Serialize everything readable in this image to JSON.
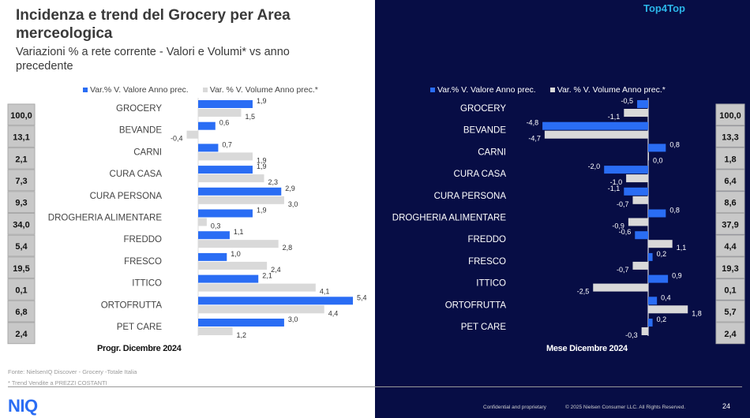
{
  "header": {
    "title": "Incidenza e trend del Grocery per Area merceologica",
    "subtitle": "Variazioni % a rete corrente - Valori e Volumi* vs anno precedente",
    "brand": "Top4Top"
  },
  "colors": {
    "valore": "#2a6df4",
    "volume": "#d9d9d9",
    "right_background": "#070d45",
    "share_box": "#c8c8c8"
  },
  "chart_data": [
    {
      "type": "bar",
      "orientation": "horizontal",
      "period": "Progr. Dicembre 2024",
      "categories": [
        "GROCERY",
        "BEVANDE",
        "CARNI",
        "CURA CASA",
        "CURA PERSONA",
        "DROGHERIA ALIMENTARE",
        "FREDDO",
        "FRESCO",
        "ITTICO",
        "ORTOFRUTTA",
        "PET CARE"
      ],
      "share": [
        "100,0",
        "13,1",
        "2,1",
        "7,3",
        "9,3",
        "34,0",
        "5,4",
        "19,5",
        "0,1",
        "6,8",
        "2,4"
      ],
      "series": [
        {
          "name": "Var.% V. Valore Anno prec.",
          "values": [
            1.9,
            0.6,
            0.7,
            1.9,
            2.9,
            1.9,
            1.1,
            1.0,
            2.1,
            5.4,
            3.0
          ]
        },
        {
          "name": "Var. % V. Volume Anno prec.*",
          "values": [
            1.5,
            -0.4,
            1.9,
            2.3,
            3.0,
            0.3,
            2.8,
            2.4,
            4.1,
            4.4,
            1.2
          ]
        }
      ]
    },
    {
      "type": "bar",
      "orientation": "horizontal",
      "period": "Mese Dicembre 2024",
      "categories": [
        "GROCERY",
        "BEVANDE",
        "CARNI",
        "CURA CASA",
        "CURA PERSONA",
        "DROGHERIA ALIMENTARE",
        "FREDDO",
        "FRESCO",
        "ITTICO",
        "ORTOFRUTTA",
        "PET CARE"
      ],
      "share": [
        "100,0",
        "13,3",
        "1,8",
        "6,4",
        "8,6",
        "37,9",
        "4,4",
        "19,3",
        "0,1",
        "5,7",
        "2,4"
      ],
      "series": [
        {
          "name": "Var.% V. Valore Anno prec.",
          "values": [
            -0.5,
            -4.8,
            0.8,
            -2.0,
            -1.1,
            0.8,
            -0.6,
            0.2,
            0.9,
            0.4,
            0.2
          ]
        },
        {
          "name": "Var. % V. Volume Anno prec.*",
          "values": [
            -1.1,
            -4.7,
            0.0,
            -1.0,
            -0.7,
            -0.9,
            1.1,
            -0.7,
            -2.5,
            1.8,
            -0.3
          ]
        }
      ]
    }
  ],
  "footer": {
    "source": "Fonte: NielsenIQ Discover  - Grocery -Totale Italia",
    "note": "* Trend Vendite a PREZZI COSTANTI",
    "logo": "NIQ",
    "confidential": "Confidential and proprietary",
    "copyright": "© 2025 Nielsen Consumer LLC. All Rights Reserved.",
    "page": "24"
  }
}
